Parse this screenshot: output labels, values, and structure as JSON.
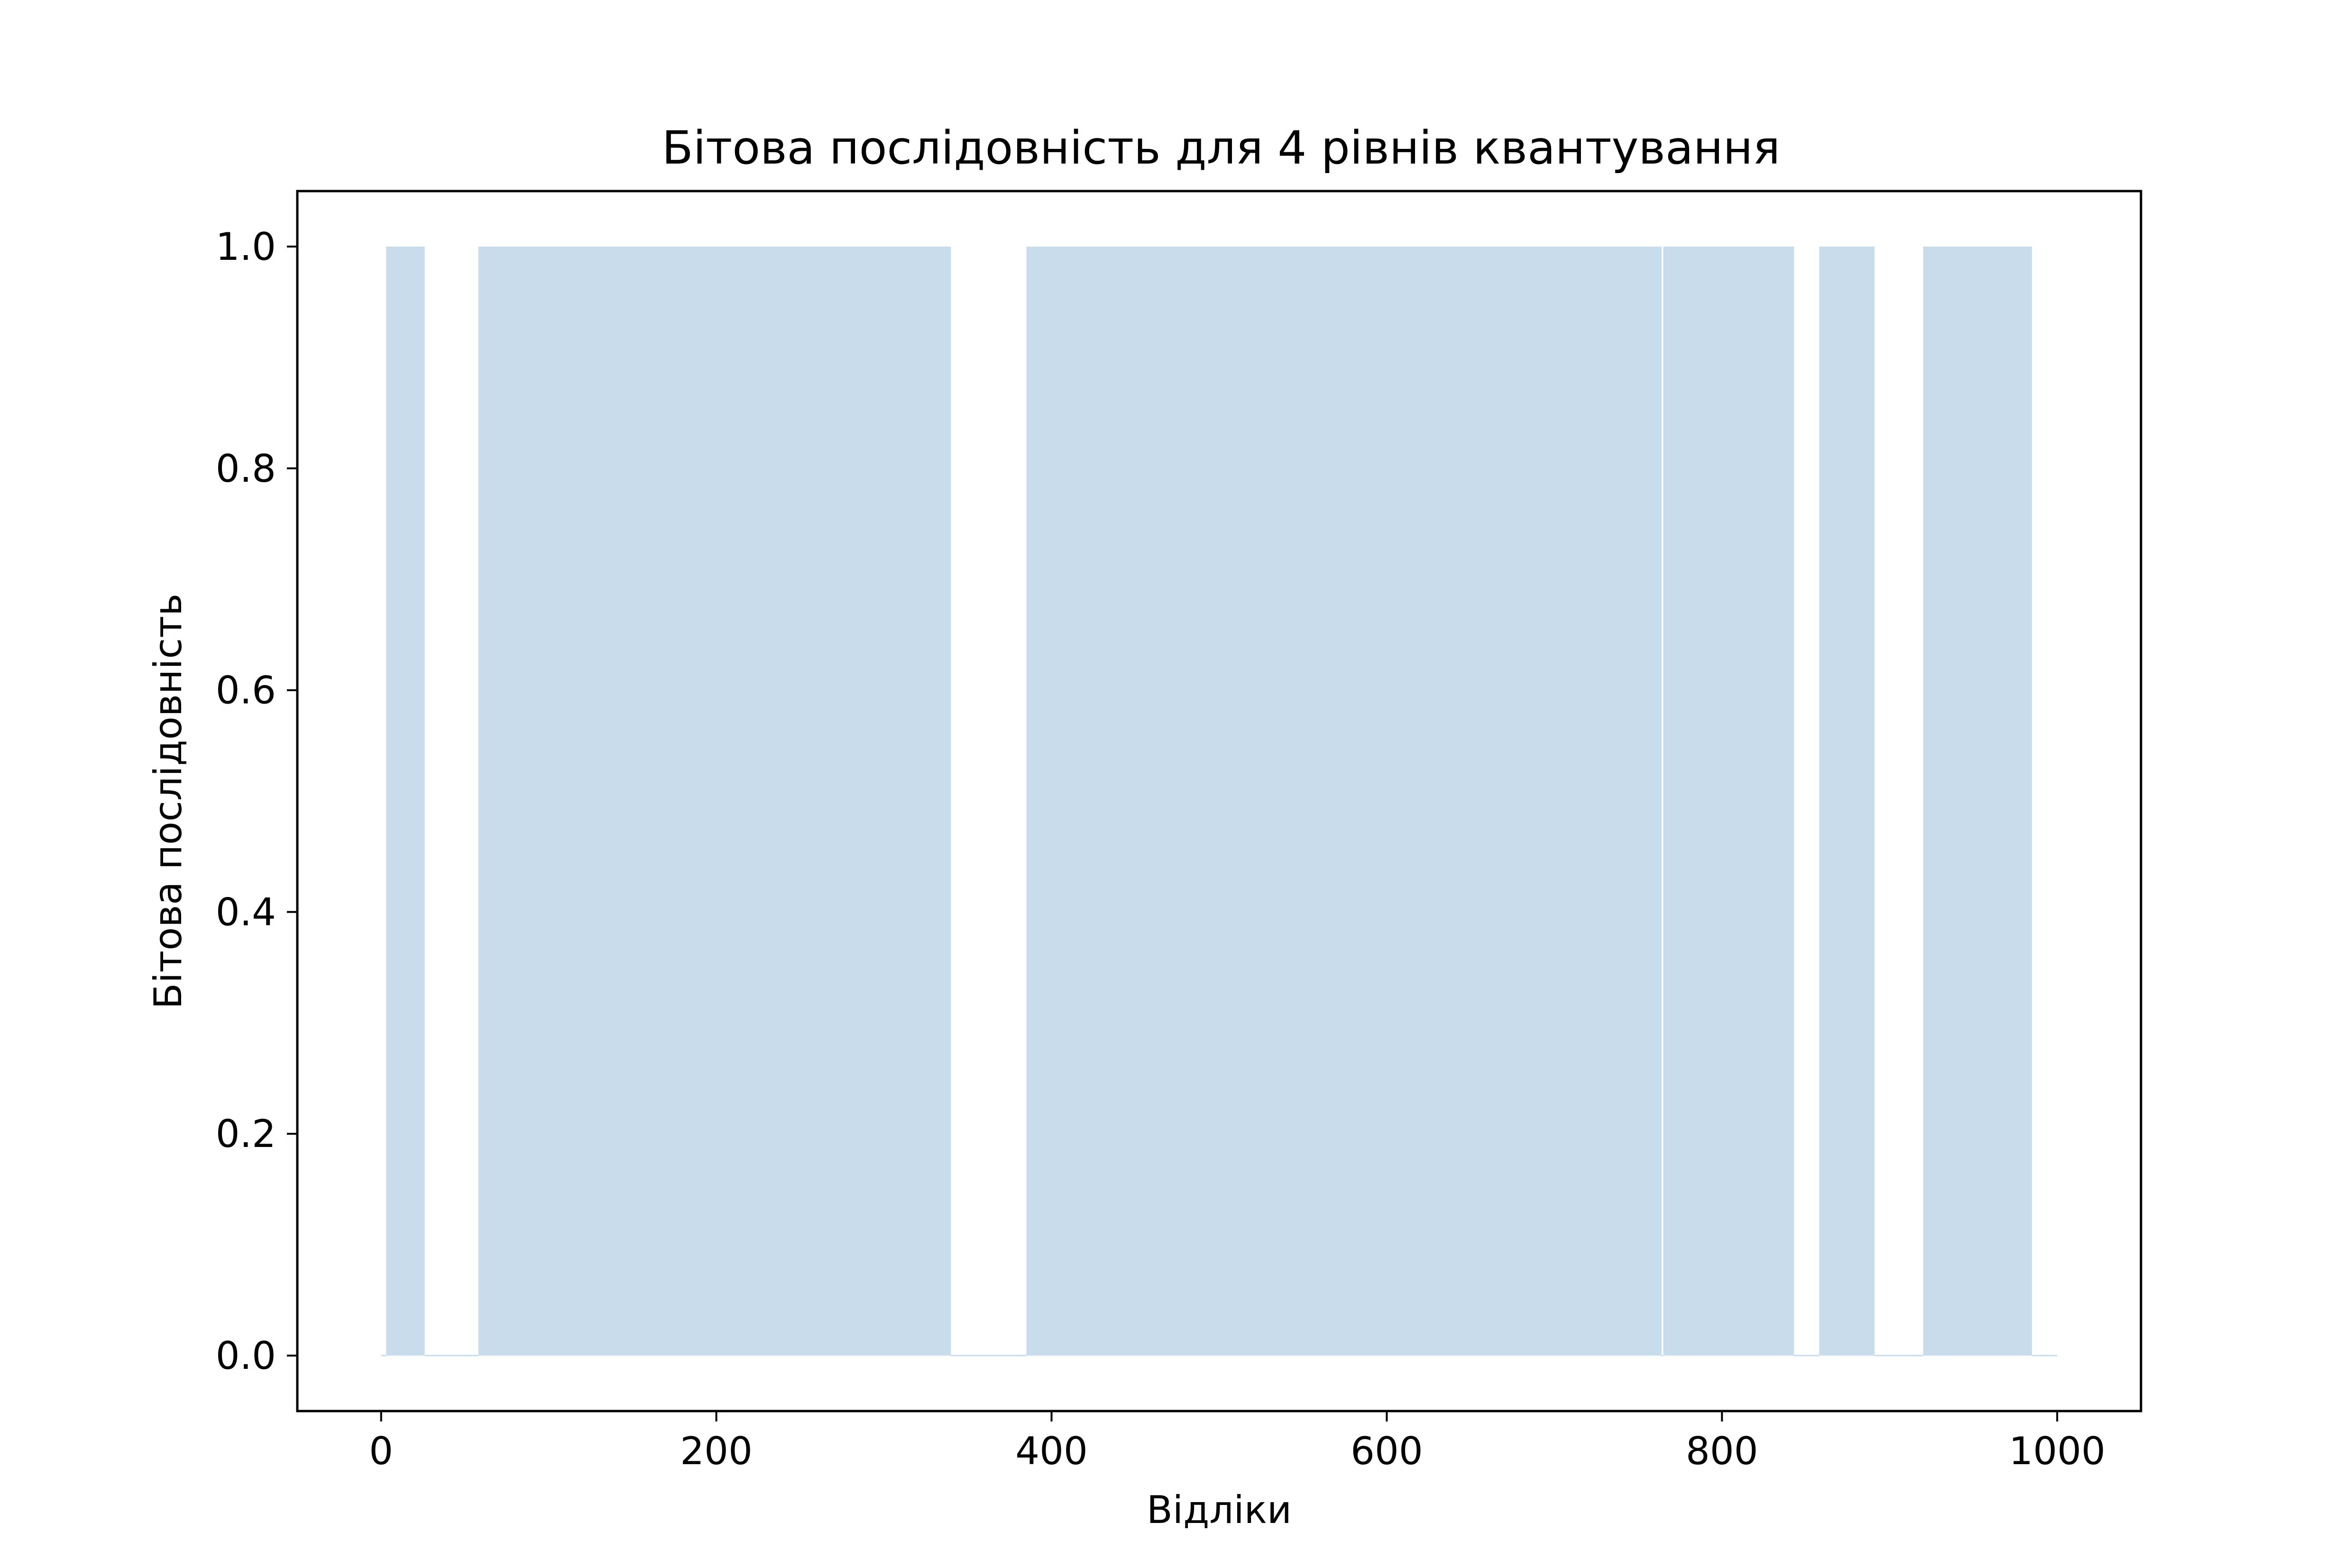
{
  "chart_data": {
    "type": "bar",
    "title": "Бітова послідовність для 4 рівнів квантування",
    "xlabel": "Відліки",
    "ylabel": "Бітова послідовність",
    "xlim": [
      -50,
      1050
    ],
    "ylim": [
      -0.05,
      1.05
    ],
    "x_ticks": [
      0,
      200,
      400,
      600,
      800,
      1000
    ],
    "x_tick_labels": [
      "0",
      "200",
      "400",
      "600",
      "800",
      "1000"
    ],
    "y_ticks": [
      0.0,
      0.2,
      0.4,
      0.6,
      0.8,
      1.0
    ],
    "y_tick_labels": [
      "0.0",
      "0.2",
      "0.4",
      "0.6",
      "0.8",
      "1.0"
    ],
    "grid": false,
    "legend": "none",
    "bar_color": "#c8dcec",
    "series": [
      {
        "segments": [
          {
            "start": 0,
            "end": 3,
            "value": 0
          },
          {
            "start": 3,
            "end": 26,
            "value": 1
          },
          {
            "start": 26,
            "end": 58,
            "value": 0
          },
          {
            "start": 58,
            "end": 340,
            "value": 1
          },
          {
            "start": 340,
            "end": 385,
            "value": 0
          },
          {
            "start": 385,
            "end": 764,
            "value": 1
          },
          {
            "start": 764,
            "end": 765,
            "value": 0
          },
          {
            "start": 765,
            "end": 843,
            "value": 1
          },
          {
            "start": 843,
            "end": 858,
            "value": 0
          },
          {
            "start": 858,
            "end": 891,
            "value": 1
          },
          {
            "start": 891,
            "end": 920,
            "value": 0
          },
          {
            "start": 920,
            "end": 985,
            "value": 1
          },
          {
            "start": 985,
            "end": 1000,
            "value": 0
          }
        ]
      }
    ]
  }
}
